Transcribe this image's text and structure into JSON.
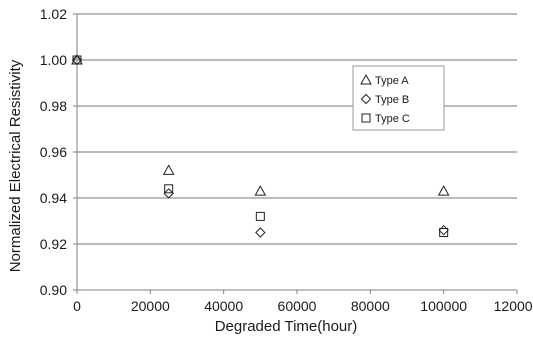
{
  "chart_data": {
    "type": "scatter",
    "title": "",
    "xlabel": "Degraded Time(hour)",
    "ylabel": "Normalized Electrical Resistivity",
    "xlim": [
      0,
      120000
    ],
    "ylim": [
      0.9,
      1.02
    ],
    "xticks": [
      "0",
      "20000",
      "40000",
      "60000",
      "80000",
      "100000",
      "120000"
    ],
    "yticks": [
      "0.90",
      "0.92",
      "0.94",
      "0.96",
      "0.98",
      "1.00",
      "1.02"
    ],
    "grid": "horizontal",
    "legend_position": "top-right",
    "series": [
      {
        "name": "Type A",
        "marker": "triangle",
        "x": [
          0,
          25000,
          50000,
          100000
        ],
        "y": [
          1.0,
          0.952,
          0.943,
          0.943
        ]
      },
      {
        "name": "Type B",
        "marker": "diamond",
        "x": [
          0,
          25000,
          50000,
          100000
        ],
        "y": [
          1.0,
          0.942,
          0.925,
          0.926
        ]
      },
      {
        "name": "Type C",
        "marker": "square",
        "x": [
          0,
          25000,
          50000,
          100000
        ],
        "y": [
          1.0,
          0.944,
          0.932,
          0.925
        ]
      }
    ]
  }
}
